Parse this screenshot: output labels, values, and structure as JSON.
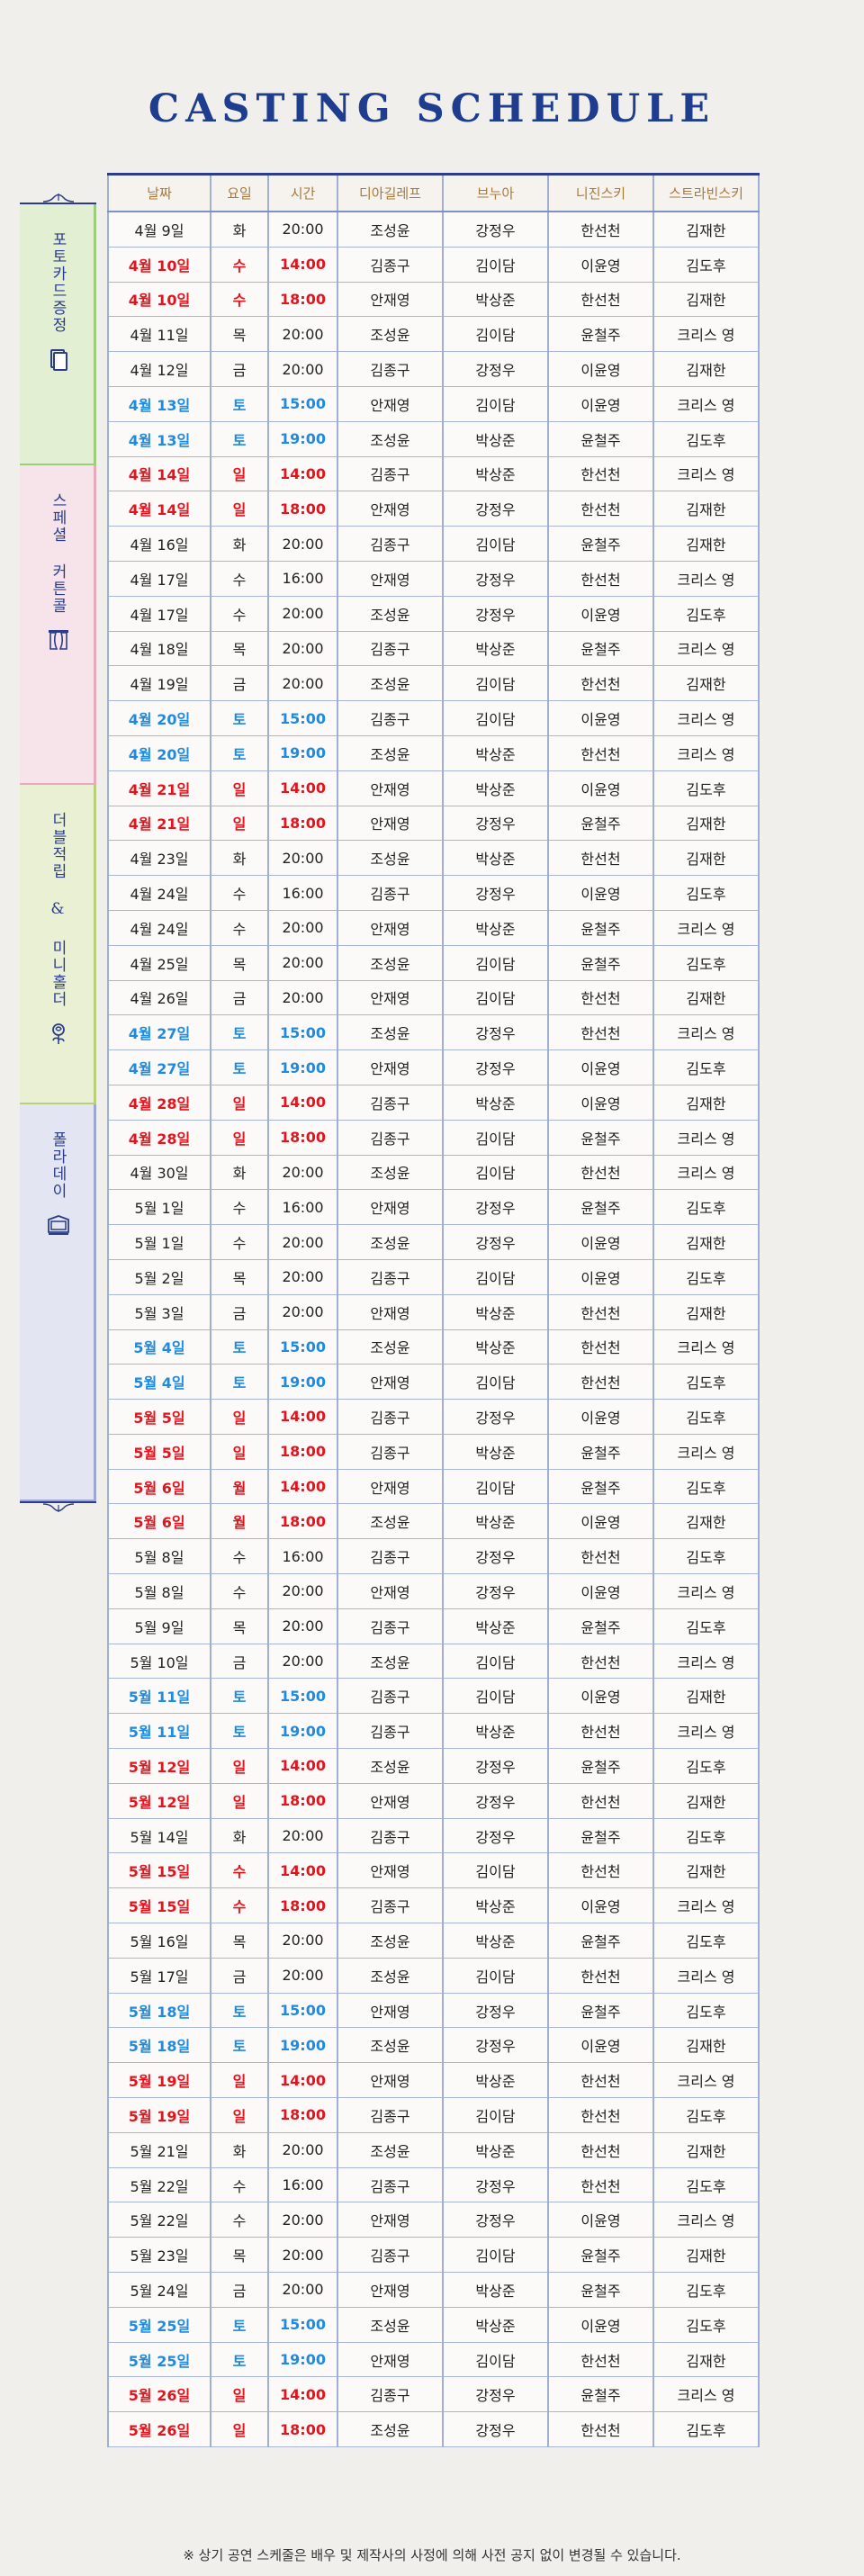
{
  "title": "CASTING SCHEDULE",
  "headers": [
    "날짜",
    "요일",
    "시간",
    "디아길레프",
    "브누아",
    "니진스키",
    "스트라빈스키"
  ],
  "colors": {
    "title": "#1f3d8f",
    "saturday": "#1f8ae0",
    "sunday_matinee": "#e4141e",
    "header_text": "#a87a3a"
  },
  "sidebar": [
    {
      "label": "포토카드증정",
      "icon": "photocard-icon",
      "color": "#e3efd3"
    },
    {
      "label": "스페셜 커튼콜",
      "icon": "curtain-icon",
      "color": "#f7e3ea"
    },
    {
      "label": "더블적립 & 미니홀더",
      "icon": "rose-icon",
      "color": "#eaf0d4"
    },
    {
      "label": "폴라데이",
      "icon": "polaroid-icon",
      "color": "#e3e5f2"
    }
  ],
  "rows": [
    [
      "4월 9일",
      "화",
      "20:00",
      "조성윤",
      "강정우",
      "한선천",
      "김재한",
      ""
    ],
    [
      "4월 10일",
      "수",
      "14:00",
      "김종구",
      "김이담",
      "이윤영",
      "김도후",
      "red"
    ],
    [
      "4월 10일",
      "수",
      "18:00",
      "안재영",
      "박상준",
      "한선천",
      "김재한",
      "red"
    ],
    [
      "4월 11일",
      "목",
      "20:00",
      "조성윤",
      "김이담",
      "윤철주",
      "크리스 영",
      ""
    ],
    [
      "4월 12일",
      "금",
      "20:00",
      "김종구",
      "강정우",
      "이윤영",
      "김재한",
      ""
    ],
    [
      "4월 13일",
      "토",
      "15:00",
      "안재영",
      "김이담",
      "이윤영",
      "크리스 영",
      "blue"
    ],
    [
      "4월 13일",
      "토",
      "19:00",
      "조성윤",
      "박상준",
      "윤철주",
      "김도후",
      "blue"
    ],
    [
      "4월 14일",
      "일",
      "14:00",
      "김종구",
      "박상준",
      "한선천",
      "크리스 영",
      "red"
    ],
    [
      "4월 14일",
      "일",
      "18:00",
      "안재영",
      "강정우",
      "한선천",
      "김재한",
      "red"
    ],
    [
      "4월 16일",
      "화",
      "20:00",
      "김종구",
      "김이담",
      "윤철주",
      "김재한",
      ""
    ],
    [
      "4월 17일",
      "수",
      "16:00",
      "안재영",
      "강정우",
      "한선천",
      "크리스 영",
      ""
    ],
    [
      "4월 17일",
      "수",
      "20:00",
      "조성윤",
      "강정우",
      "이윤영",
      "김도후",
      ""
    ],
    [
      "4월 18일",
      "목",
      "20:00",
      "김종구",
      "박상준",
      "윤철주",
      "크리스 영",
      ""
    ],
    [
      "4월 19일",
      "금",
      "20:00",
      "조성윤",
      "김이담",
      "한선천",
      "김재한",
      ""
    ],
    [
      "4월 20일",
      "토",
      "15:00",
      "김종구",
      "김이담",
      "이윤영",
      "크리스 영",
      "blue"
    ],
    [
      "4월 20일",
      "토",
      "19:00",
      "조성윤",
      "박상준",
      "한선천",
      "크리스 영",
      "blue"
    ],
    [
      "4월 21일",
      "일",
      "14:00",
      "안재영",
      "박상준",
      "이윤영",
      "김도후",
      "red"
    ],
    [
      "4월 21일",
      "일",
      "18:00",
      "안재영",
      "강정우",
      "윤철주",
      "김재한",
      "red"
    ],
    [
      "4월 23일",
      "화",
      "20:00",
      "조성윤",
      "박상준",
      "한선천",
      "김재한",
      ""
    ],
    [
      "4월 24일",
      "수",
      "16:00",
      "김종구",
      "강정우",
      "이윤영",
      "김도후",
      ""
    ],
    [
      "4월 24일",
      "수",
      "20:00",
      "안재영",
      "박상준",
      "윤철주",
      "크리스 영",
      ""
    ],
    [
      "4월 25일",
      "목",
      "20:00",
      "조성윤",
      "김이담",
      "윤철주",
      "김도후",
      ""
    ],
    [
      "4월 26일",
      "금",
      "20:00",
      "안재영",
      "김이담",
      "한선천",
      "김재한",
      ""
    ],
    [
      "4월 27일",
      "토",
      "15:00",
      "조성윤",
      "강정우",
      "한선천",
      "크리스 영",
      "blue"
    ],
    [
      "4월 27일",
      "토",
      "19:00",
      "안재영",
      "강정우",
      "이윤영",
      "김도후",
      "blue"
    ],
    [
      "4월 28일",
      "일",
      "14:00",
      "김종구",
      "박상준",
      "이윤영",
      "김재한",
      "red"
    ],
    [
      "4월 28일",
      "일",
      "18:00",
      "김종구",
      "김이담",
      "윤철주",
      "크리스 영",
      "red"
    ],
    [
      "4월 30일",
      "화",
      "20:00",
      "조성윤",
      "김이담",
      "한선천",
      "크리스 영",
      ""
    ],
    [
      "5월 1일",
      "수",
      "16:00",
      "안재영",
      "강정우",
      "윤철주",
      "김도후",
      ""
    ],
    [
      "5월 1일",
      "수",
      "20:00",
      "조성윤",
      "강정우",
      "이윤영",
      "김재한",
      ""
    ],
    [
      "5월 2일",
      "목",
      "20:00",
      "김종구",
      "김이담",
      "이윤영",
      "김도후",
      ""
    ],
    [
      "5월 3일",
      "금",
      "20:00",
      "안재영",
      "박상준",
      "한선천",
      "김재한",
      ""
    ],
    [
      "5월 4일",
      "토",
      "15:00",
      "조성윤",
      "박상준",
      "한선천",
      "크리스 영",
      "blue"
    ],
    [
      "5월 4일",
      "토",
      "19:00",
      "안재영",
      "김이담",
      "한선천",
      "김도후",
      "blue"
    ],
    [
      "5월 5일",
      "일",
      "14:00",
      "김종구",
      "강정우",
      "이윤영",
      "김도후",
      "red"
    ],
    [
      "5월 5일",
      "일",
      "18:00",
      "김종구",
      "박상준",
      "윤철주",
      "크리스 영",
      "red"
    ],
    [
      "5월 6일",
      "월",
      "14:00",
      "안재영",
      "김이담",
      "윤철주",
      "김도후",
      "red"
    ],
    [
      "5월 6일",
      "월",
      "18:00",
      "조성윤",
      "박상준",
      "이윤영",
      "김재한",
      "red"
    ],
    [
      "5월 8일",
      "수",
      "16:00",
      "김종구",
      "강정우",
      "한선천",
      "김도후",
      ""
    ],
    [
      "5월 8일",
      "수",
      "20:00",
      "안재영",
      "강정우",
      "이윤영",
      "크리스 영",
      ""
    ],
    [
      "5월 9일",
      "목",
      "20:00",
      "김종구",
      "박상준",
      "윤철주",
      "김도후",
      ""
    ],
    [
      "5월 10일",
      "금",
      "20:00",
      "조성윤",
      "김이담",
      "한선천",
      "크리스 영",
      ""
    ],
    [
      "5월 11일",
      "토",
      "15:00",
      "김종구",
      "김이담",
      "이윤영",
      "김재한",
      "blue"
    ],
    [
      "5월 11일",
      "토",
      "19:00",
      "김종구",
      "박상준",
      "한선천",
      "크리스 영",
      "blue"
    ],
    [
      "5월 12일",
      "일",
      "14:00",
      "조성윤",
      "강정우",
      "윤철주",
      "김도후",
      "red"
    ],
    [
      "5월 12일",
      "일",
      "18:00",
      "안재영",
      "강정우",
      "한선천",
      "김재한",
      "red"
    ],
    [
      "5월 14일",
      "화",
      "20:00",
      "김종구",
      "강정우",
      "윤철주",
      "김도후",
      ""
    ],
    [
      "5월 15일",
      "수",
      "14:00",
      "안재영",
      "김이담",
      "한선천",
      "김재한",
      "red"
    ],
    [
      "5월 15일",
      "수",
      "18:00",
      "김종구",
      "박상준",
      "이윤영",
      "크리스 영",
      "red"
    ],
    [
      "5월 16일",
      "목",
      "20:00",
      "조성윤",
      "박상준",
      "윤철주",
      "김도후",
      ""
    ],
    [
      "5월 17일",
      "금",
      "20:00",
      "조성윤",
      "김이담",
      "한선천",
      "크리스 영",
      ""
    ],
    [
      "5월 18일",
      "토",
      "15:00",
      "안재영",
      "강정우",
      "윤철주",
      "김도후",
      "blue"
    ],
    [
      "5월 18일",
      "토",
      "19:00",
      "조성윤",
      "강정우",
      "이윤영",
      "김재한",
      "blue"
    ],
    [
      "5월 19일",
      "일",
      "14:00",
      "안재영",
      "박상준",
      "한선천",
      "크리스 영",
      "red"
    ],
    [
      "5월 19일",
      "일",
      "18:00",
      "김종구",
      "김이담",
      "한선천",
      "김도후",
      "red"
    ],
    [
      "5월 21일",
      "화",
      "20:00",
      "조성윤",
      "박상준",
      "한선천",
      "김재한",
      ""
    ],
    [
      "5월 22일",
      "수",
      "16:00",
      "김종구",
      "강정우",
      "한선천",
      "김도후",
      ""
    ],
    [
      "5월 22일",
      "수",
      "20:00",
      "안재영",
      "강정우",
      "이윤영",
      "크리스 영",
      ""
    ],
    [
      "5월 23일",
      "목",
      "20:00",
      "김종구",
      "김이담",
      "윤철주",
      "김재한",
      ""
    ],
    [
      "5월 24일",
      "금",
      "20:00",
      "안재영",
      "박상준",
      "윤철주",
      "김도후",
      ""
    ],
    [
      "5월 25일",
      "토",
      "15:00",
      "조성윤",
      "박상준",
      "이윤영",
      "김도후",
      "blue"
    ],
    [
      "5월 25일",
      "토",
      "19:00",
      "안재영",
      "김이담",
      "한선천",
      "김재한",
      "blue"
    ],
    [
      "5월 26일",
      "일",
      "14:00",
      "김종구",
      "강정우",
      "윤철주",
      "크리스 영",
      "red"
    ],
    [
      "5월 26일",
      "일",
      "18:00",
      "조성윤",
      "강정우",
      "한선천",
      "김도후",
      "red"
    ]
  ],
  "note": "※ 상기 공연 스케줄은 배우 및 제작사의 사정에 의해 사전 공지 없이 변경될 수 있습니다."
}
